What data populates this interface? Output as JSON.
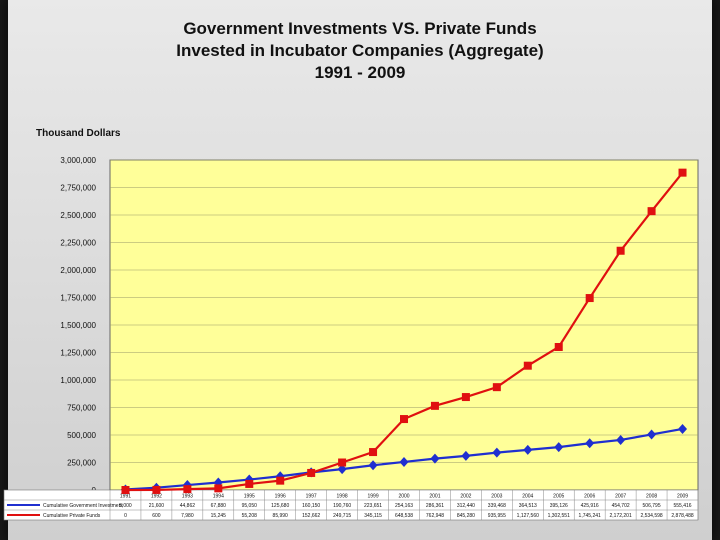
{
  "title_lines": [
    "Government Investments VS. Private Funds",
    "Invested in Incubator Companies (Aggregate)",
    "1991 - 2009"
  ],
  "colors": {
    "plot_bg": "#ffff99",
    "government": "#1f2fd0",
    "private": "#e01010"
  },
  "chart_data": {
    "type": "line",
    "title": "Government Investments VS. Private Funds Invested in Incubator Companies (Aggregate) 1991 - 2009",
    "ylabel": "Thousand Dollars",
    "xlabel": "",
    "ylim": [
      0,
      3000000
    ],
    "yticks": [
      "0",
      "250,000",
      "500,000",
      "750,000",
      "1,000,000",
      "1,250,000",
      "1,500,000",
      "1,750,000",
      "2,000,000",
      "2,250,000",
      "2,500,000",
      "2,750,000",
      "3,000,000"
    ],
    "grid": true,
    "categories": [
      "1991",
      "1992",
      "1993",
      "1994",
      "1995",
      "1996",
      "1997",
      "1998",
      "1999",
      "2000",
      "2001",
      "2002",
      "2003",
      "2004",
      "2005",
      "2006",
      "2007",
      "2008",
      "2009"
    ],
    "series": [
      {
        "name": "Cumulative Government Investment",
        "marker": "diamond",
        "values": [
          5000,
          21000,
          45000,
          68000,
          95000,
          125000,
          160000,
          190000,
          225000,
          255000,
          285000,
          310000,
          340000,
          365000,
          390000,
          425000,
          455000,
          505000,
          555000
        ]
      },
      {
        "name": "Cumulative Private Funds",
        "marker": "square",
        "values": [
          0,
          600,
          8000,
          15000,
          55000,
          85000,
          155000,
          250000,
          345000,
          645000,
          765000,
          845000,
          935000,
          1130000,
          1300000,
          1745000,
          2175000,
          2535000,
          2885000
        ]
      }
    ],
    "table": {
      "rows": [
        [
          "5,000",
          "21,600",
          "44,862",
          "67,880",
          "95,050",
          "125,680",
          "160,150",
          "190,760",
          "223,651",
          "254,163",
          "286,361",
          "312,440",
          "339,468",
          "364,513",
          "395,126",
          "425,916",
          "454,702",
          "506,795",
          "555,416"
        ],
        [
          "0",
          "600",
          "7,980",
          "15,245",
          "55,208",
          "85,990",
          "152,662",
          "249,715",
          "345,115",
          "648,538",
          "762,948",
          "845,280",
          "935,955",
          "1,127,560",
          "1,302,551",
          "1,745,241",
          "2,172,201",
          "2,534,598",
          "2,878,488"
        ]
      ]
    }
  }
}
